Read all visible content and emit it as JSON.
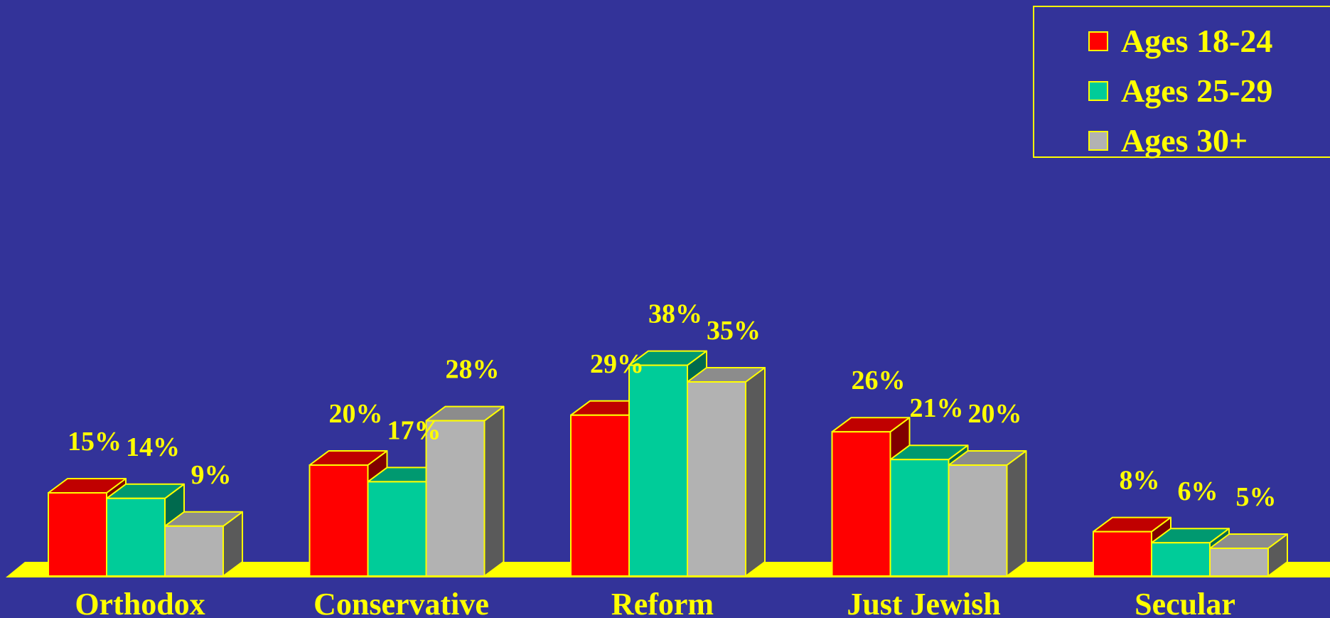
{
  "chart_data": {
    "type": "bar",
    "style": "3d-clustered",
    "categories": [
      "Orthodox",
      "Conservative",
      "Reform",
      "Just Jewish",
      "Secular"
    ],
    "series": [
      {
        "name": "Ages 18-24",
        "values": [
          15,
          20,
          29,
          26,
          8
        ],
        "color": "#FF0000",
        "side_color": "#800000",
        "top_color": "#C00000"
      },
      {
        "name": "Ages 25-29",
        "values": [
          14,
          17,
          38,
          21,
          6
        ],
        "color": "#00CC99",
        "side_color": "#006A4E",
        "top_color": "#009970"
      },
      {
        "name": "Ages 30+",
        "values": [
          9,
          28,
          35,
          20,
          5
        ],
        "color": "#B2B2B2",
        "side_color": "#5A5A5A",
        "top_color": "#8C8C8C"
      }
    ],
    "value_suffix": "%",
    "ylim": [
      0,
      40
    ],
    "grid": false,
    "legend": "top-right",
    "background_color": "#333399",
    "text_color": "#FFFF00",
    "floor_color": "#FFFF00"
  }
}
